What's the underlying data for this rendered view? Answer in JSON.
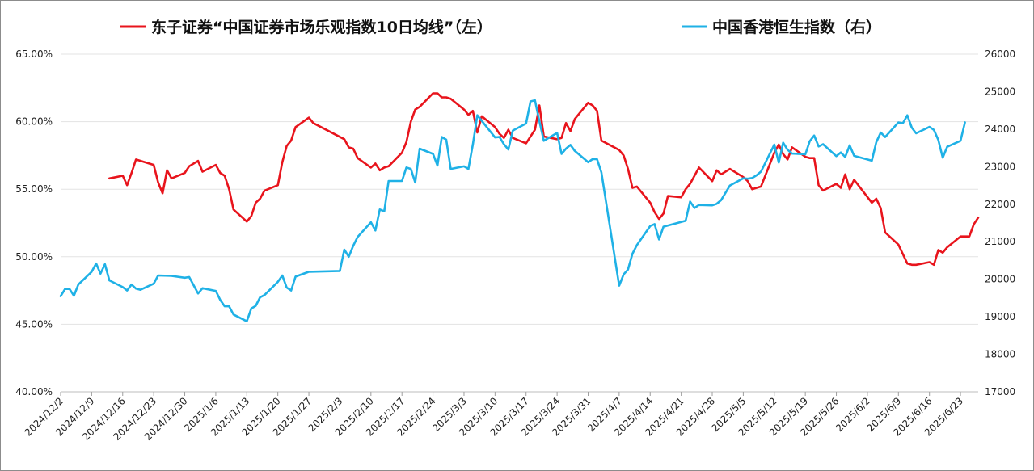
{
  "chart_data": {
    "type": "line",
    "title": "",
    "xlabel": "",
    "legend_position": "top",
    "grid": "horizontal",
    "x_ticks": [
      "2024/12/2",
      "2024/12/9",
      "2024/12/16",
      "2024/12/23",
      "2024/12/30",
      "2025/1/6",
      "2025/1/13",
      "2025/1/20",
      "2025/1/27",
      "2025/2/3",
      "2025/2/10",
      "2025/2/17",
      "2025/2/24",
      "2025/3/3",
      "2025/3/10",
      "2025/3/17",
      "2025/3/24",
      "2025/3/31",
      "2025/4/7",
      "2025/4/14",
      "2025/4/21",
      "2025/4/28",
      "2025/5/5",
      "2025/5/12",
      "2025/5/19",
      "2025/5/26",
      "2025/6/2",
      "2025/6/9",
      "2025/6/16",
      "2025/6/23"
    ],
    "x_range": [
      "2024/12/2",
      "2025/6/27"
    ],
    "y_left": {
      "ylim": [
        40,
        65
      ],
      "ticks": [
        "40.00%",
        "45.00%",
        "50.00%",
        "55.00%",
        "60.00%",
        "65.00%"
      ]
    },
    "y_right": {
      "ylim": [
        17000,
        26000
      ],
      "ticks": [
        "17000",
        "18000",
        "19000",
        "20000",
        "21000",
        "22000",
        "23000",
        "24000",
        "25000",
        "26000"
      ]
    },
    "series": [
      {
        "name": "东子证券“中国证券市场乐观指数10日均线”（左）",
        "color": "#e8141c",
        "axis": "left",
        "points": [
          [
            "2024/12/13",
            55.8
          ],
          [
            "2024/12/16",
            56.0
          ],
          [
            "2024/12/17",
            55.3
          ],
          [
            "2024/12/18",
            56.2
          ],
          [
            "2024/12/19",
            57.2
          ],
          [
            "2024/12/23",
            56.8
          ],
          [
            "2024/12/24",
            55.5
          ],
          [
            "2024/12/25",
            54.7
          ],
          [
            "2024/12/26",
            56.4
          ],
          [
            "2024/12/27",
            55.8
          ],
          [
            "2024/12/30",
            56.2
          ],
          [
            "2024/12/31",
            56.7
          ],
          [
            "2025/1/2",
            57.1
          ],
          [
            "2025/1/3",
            56.3
          ],
          [
            "2025/1/6",
            56.8
          ],
          [
            "2025/1/7",
            56.2
          ],
          [
            "2025/1/8",
            56.0
          ],
          [
            "2025/1/9",
            55.0
          ],
          [
            "2025/1/10",
            53.5
          ],
          [
            "2025/1/13",
            52.6
          ],
          [
            "2025/1/14",
            53.0
          ],
          [
            "2025/1/15",
            54.0
          ],
          [
            "2025/1/16",
            54.3
          ],
          [
            "2025/1/17",
            54.9
          ],
          [
            "2025/1/20",
            55.3
          ],
          [
            "2025/1/21",
            57.0
          ],
          [
            "2025/1/22",
            58.2
          ],
          [
            "2025/1/23",
            58.6
          ],
          [
            "2025/1/24",
            59.6
          ],
          [
            "2025/1/27",
            60.3
          ],
          [
            "2025/1/28",
            59.9
          ],
          [
            "2025/2/4",
            58.7
          ],
          [
            "2025/2/5",
            58.1
          ],
          [
            "2025/2/6",
            58.0
          ],
          [
            "2025/2/7",
            57.3
          ],
          [
            "2025/2/10",
            56.6
          ],
          [
            "2025/2/11",
            56.9
          ],
          [
            "2025/2/12",
            56.4
          ],
          [
            "2025/2/13",
            56.6
          ],
          [
            "2025/2/14",
            56.7
          ],
          [
            "2025/2/17",
            57.7
          ],
          [
            "2025/2/18",
            58.5
          ],
          [
            "2025/2/19",
            60.0
          ],
          [
            "2025/2/20",
            60.9
          ],
          [
            "2025/2/21",
            61.1
          ],
          [
            "2025/2/24",
            62.1
          ],
          [
            "2025/2/25",
            62.1
          ],
          [
            "2025/2/26",
            61.8
          ],
          [
            "2025/2/27",
            61.8
          ],
          [
            "2025/2/28",
            61.7
          ],
          [
            "2025/3/3",
            60.9
          ],
          [
            "2025/3/4",
            60.5
          ],
          [
            "2025/3/5",
            60.8
          ],
          [
            "2025/3/6",
            59.2
          ],
          [
            "2025/3/7",
            60.4
          ],
          [
            "2025/3/10",
            59.6
          ],
          [
            "2025/3/11",
            59.1
          ],
          [
            "2025/3/12",
            58.8
          ],
          [
            "2025/3/13",
            59.4
          ],
          [
            "2025/3/14",
            58.8
          ],
          [
            "2025/3/17",
            58.4
          ],
          [
            "2025/3/18",
            58.9
          ],
          [
            "2025/3/19",
            59.4
          ],
          [
            "2025/3/20",
            61.2
          ],
          [
            "2025/3/21",
            58.9
          ],
          [
            "2025/3/24",
            58.7
          ],
          [
            "2025/3/25",
            58.8
          ],
          [
            "2025/3/26",
            59.9
          ],
          [
            "2025/3/27",
            59.3
          ],
          [
            "2025/3/28",
            60.2
          ],
          [
            "2025/3/31",
            61.4
          ],
          [
            "2025/4/1",
            61.2
          ],
          [
            "2025/4/2",
            60.8
          ],
          [
            "2025/4/3",
            58.6
          ],
          [
            "2025/4/7",
            57.9
          ],
          [
            "2025/4/8",
            57.5
          ],
          [
            "2025/4/9",
            56.5
          ],
          [
            "2025/4/10",
            55.1
          ],
          [
            "2025/4/11",
            55.2
          ],
          [
            "2025/4/14",
            54.0
          ],
          [
            "2025/4/15",
            53.3
          ],
          [
            "2025/4/16",
            52.8
          ],
          [
            "2025/4/17",
            53.2
          ],
          [
            "2025/4/18",
            54.5
          ],
          [
            "2025/4/21",
            54.4
          ],
          [
            "2025/4/22",
            55.0
          ],
          [
            "2025/4/23",
            55.4
          ],
          [
            "2025/4/24",
            56.0
          ],
          [
            "2025/4/25",
            56.6
          ],
          [
            "2025/4/28",
            55.6
          ],
          [
            "2025/4/29",
            56.4
          ],
          [
            "2025/4/30",
            56.1
          ],
          [
            "2025/5/2",
            56.5
          ],
          [
            "2025/5/5",
            55.9
          ],
          [
            "2025/5/6",
            55.6
          ],
          [
            "2025/5/7",
            55.0
          ],
          [
            "2025/5/8",
            55.1
          ],
          [
            "2025/5/9",
            55.2
          ],
          [
            "2025/5/12",
            57.7
          ],
          [
            "2025/5/13",
            58.3
          ],
          [
            "2025/5/14",
            57.6
          ],
          [
            "2025/5/15",
            57.2
          ],
          [
            "2025/5/16",
            58.1
          ],
          [
            "2025/5/19",
            57.4
          ],
          [
            "2025/5/20",
            57.3
          ],
          [
            "2025/5/21",
            57.3
          ],
          [
            "2025/5/22",
            55.3
          ],
          [
            "2025/5/23",
            54.9
          ],
          [
            "2025/5/26",
            55.4
          ],
          [
            "2025/5/27",
            55.1
          ],
          [
            "2025/5/28",
            56.1
          ],
          [
            "2025/5/29",
            55.0
          ],
          [
            "2025/5/30",
            55.7
          ],
          [
            "2025/6/3",
            54.0
          ],
          [
            "2025/6/4",
            54.3
          ],
          [
            "2025/6/5",
            53.6
          ],
          [
            "2025/6/6",
            51.8
          ],
          [
            "2025/6/9",
            50.9
          ],
          [
            "2025/6/10",
            50.2
          ],
          [
            "2025/6/11",
            49.5
          ],
          [
            "2025/6/12",
            49.4
          ],
          [
            "2025/6/13",
            49.4
          ],
          [
            "2025/6/16",
            49.6
          ],
          [
            "2025/6/17",
            49.4
          ],
          [
            "2025/6/18",
            50.5
          ],
          [
            "2025/6/19",
            50.3
          ],
          [
            "2025/6/20",
            50.7
          ],
          [
            "2025/6/23",
            51.5
          ],
          [
            "2025/6/24",
            51.5
          ],
          [
            "2025/6/25",
            51.5
          ],
          [
            "2025/6/26",
            52.4
          ],
          [
            "2025/6/27",
            52.9
          ]
        ]
      },
      {
        "name": "中国香港恒生指数（右）",
        "color": "#1fb1e6",
        "axis": "right",
        "points": [
          [
            "2024/12/2",
            19550
          ],
          [
            "2024/12/3",
            19740
          ],
          [
            "2024/12/4",
            19740
          ],
          [
            "2024/12/5",
            19560
          ],
          [
            "2024/12/6",
            19860
          ],
          [
            "2024/12/9",
            20200
          ],
          [
            "2024/12/10",
            20420
          ],
          [
            "2024/12/11",
            20150
          ],
          [
            "2024/12/12",
            20400
          ],
          [
            "2024/12/13",
            19970
          ],
          [
            "2024/12/16",
            19790
          ],
          [
            "2024/12/17",
            19700
          ],
          [
            "2024/12/18",
            19860
          ],
          [
            "2024/12/19",
            19750
          ],
          [
            "2024/12/20",
            19720
          ],
          [
            "2024/12/23",
            19880
          ],
          [
            "2024/12/24",
            20100
          ],
          [
            "2024/12/27",
            20090
          ],
          [
            "2024/12/30",
            20040
          ],
          [
            "2024/12/31",
            20060
          ],
          [
            "2025/1/2",
            19620
          ],
          [
            "2025/1/3",
            19760
          ],
          [
            "2025/1/6",
            19690
          ],
          [
            "2025/1/7",
            19450
          ],
          [
            "2025/1/8",
            19280
          ],
          [
            "2025/1/9",
            19280
          ],
          [
            "2025/1/10",
            19060
          ],
          [
            "2025/1/13",
            18880
          ],
          [
            "2025/1/14",
            19220
          ],
          [
            "2025/1/15",
            19290
          ],
          [
            "2025/1/16",
            19520
          ],
          [
            "2025/1/17",
            19580
          ],
          [
            "2025/1/20",
            19930
          ],
          [
            "2025/1/21",
            20100
          ],
          [
            "2025/1/22",
            19780
          ],
          [
            "2025/1/23",
            19700
          ],
          [
            "2025/1/24",
            20070
          ],
          [
            "2025/1/27",
            20200
          ],
          [
            "2025/2/3",
            20220
          ],
          [
            "2025/2/4",
            20790
          ],
          [
            "2025/2/5",
            20600
          ],
          [
            "2025/2/6",
            20890
          ],
          [
            "2025/2/7",
            21130
          ],
          [
            "2025/2/10",
            21520
          ],
          [
            "2025/2/11",
            21300
          ],
          [
            "2025/2/12",
            21860
          ],
          [
            "2025/2/13",
            21810
          ],
          [
            "2025/2/14",
            22620
          ],
          [
            "2025/2/17",
            22620
          ],
          [
            "2025/2/18",
            22980
          ],
          [
            "2025/2/19",
            22940
          ],
          [
            "2025/2/20",
            22580
          ],
          [
            "2025/2/21",
            23480
          ],
          [
            "2025/2/24",
            23340
          ],
          [
            "2025/2/25",
            23030
          ],
          [
            "2025/2/26",
            23790
          ],
          [
            "2025/2/27",
            23720
          ],
          [
            "2025/2/28",
            22940
          ],
          [
            "2025/3/3",
            23010
          ],
          [
            "2025/3/4",
            22940
          ],
          [
            "2025/3/5",
            23590
          ],
          [
            "2025/3/6",
            24370
          ],
          [
            "2025/3/10",
            23780
          ],
          [
            "2025/3/11",
            23790
          ],
          [
            "2025/3/12",
            23600
          ],
          [
            "2025/3/13",
            23460
          ],
          [
            "2025/3/14",
            23960
          ],
          [
            "2025/3/17",
            24150
          ],
          [
            "2025/3/18",
            24740
          ],
          [
            "2025/3/19",
            24770
          ],
          [
            "2025/3/20",
            24210
          ],
          [
            "2025/3/21",
            23690
          ],
          [
            "2025/3/24",
            23900
          ],
          [
            "2025/3/25",
            23340
          ],
          [
            "2025/3/26",
            23480
          ],
          [
            "2025/3/27",
            23580
          ],
          [
            "2025/3/28",
            23420
          ],
          [
            "2025/3/31",
            23120
          ],
          [
            "2025/4/1",
            23200
          ],
          [
            "2025/4/2",
            23200
          ],
          [
            "2025/4/3",
            22850
          ],
          [
            "2025/4/7",
            19830
          ],
          [
            "2025/4/8",
            20130
          ],
          [
            "2025/4/9",
            20260
          ],
          [
            "2025/4/10",
            20680
          ],
          [
            "2025/4/11",
            20910
          ],
          [
            "2025/4/14",
            21420
          ],
          [
            "2025/4/15",
            21470
          ],
          [
            "2025/4/16",
            21060
          ],
          [
            "2025/4/17",
            21400
          ],
          [
            "2025/4/22",
            21560
          ],
          [
            "2025/4/23",
            22070
          ],
          [
            "2025/4/24",
            21900
          ],
          [
            "2025/4/25",
            21980
          ],
          [
            "2025/4/28",
            21970
          ],
          [
            "2025/4/29",
            22010
          ],
          [
            "2025/4/30",
            22110
          ],
          [
            "2025/5/2",
            22500
          ],
          [
            "2025/5/5",
            22690
          ],
          [
            "2025/5/6",
            22680
          ],
          [
            "2025/5/7",
            22700
          ],
          [
            "2025/5/8",
            22770
          ],
          [
            "2025/5/9",
            22870
          ],
          [
            "2025/5/12",
            23590
          ],
          [
            "2025/5/13",
            23110
          ],
          [
            "2025/5/14",
            23640
          ],
          [
            "2025/5/15",
            23450
          ],
          [
            "2025/5/16",
            23350
          ],
          [
            "2025/5/19",
            23330
          ],
          [
            "2025/5/20",
            23680
          ],
          [
            "2025/5/21",
            23830
          ],
          [
            "2025/5/22",
            23540
          ],
          [
            "2025/5/23",
            23600
          ],
          [
            "2025/5/26",
            23280
          ],
          [
            "2025/5/27",
            23380
          ],
          [
            "2025/5/28",
            23260
          ],
          [
            "2025/5/29",
            23570
          ],
          [
            "2025/5/30",
            23290
          ],
          [
            "2025/6/3",
            23160
          ],
          [
            "2025/6/4",
            23650
          ],
          [
            "2025/6/5",
            23910
          ],
          [
            "2025/6/6",
            23790
          ],
          [
            "2025/6/9",
            24180
          ],
          [
            "2025/6/10",
            24160
          ],
          [
            "2025/6/11",
            24370
          ],
          [
            "2025/6/12",
            24040
          ],
          [
            "2025/6/13",
            23890
          ],
          [
            "2025/6/16",
            24060
          ],
          [
            "2025/6/17",
            23980
          ],
          [
            "2025/6/18",
            23710
          ],
          [
            "2025/6/19",
            23240
          ],
          [
            "2025/6/20",
            23530
          ],
          [
            "2025/6/23",
            23690
          ],
          [
            "2025/6/24",
            24180
          ]
        ]
      }
    ]
  }
}
